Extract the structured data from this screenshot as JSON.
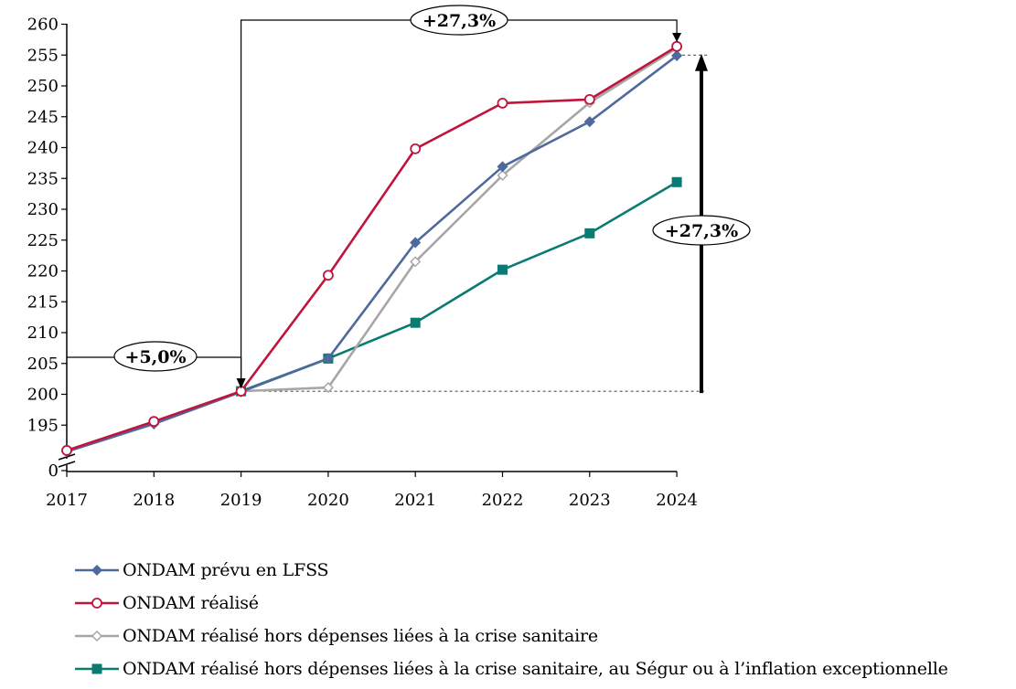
{
  "chart_data": {
    "type": "line",
    "x": [
      "2017",
      "2018",
      "2019",
      "2020",
      "2021",
      "2022",
      "2023",
      "2024"
    ],
    "yticks": [
      "0",
      "195",
      "200",
      "205",
      "210",
      "215",
      "220",
      "225",
      "230",
      "235",
      "240",
      "245",
      "250",
      "255",
      "260"
    ],
    "ylim": [
      192.5,
      260
    ],
    "y_axis_break": true,
    "grid": false,
    "legend_position": "bottom",
    "series": [
      {
        "name": "ONDAM prévu en LFSS",
        "color": "#4e6a9c",
        "marker": "diamond-filled",
        "values": [
          190.7,
          195.2,
          200.4,
          205.8,
          224.6,
          236.9,
          244.2,
          254.9
        ]
      },
      {
        "name": "ONDAM réalisé",
        "color": "#c0143c",
        "marker": "circle-open",
        "values": [
          190.9,
          195.6,
          200.5,
          219.3,
          239.8,
          247.2,
          247.8,
          256.4
        ]
      },
      {
        "name": "ONDAM réalisé hors dépenses liées à la crise sanitaire",
        "color": "#a6a6a6",
        "marker": "diamond-open",
        "values": [
          190.9,
          195.4,
          200.5,
          201.1,
          221.5,
          235.5,
          247.3,
          256.1
        ]
      },
      {
        "name": "ONDAM réalisé hors dépenses liées à la crise sanitaire, au Ségur ou à l’inflation exceptionnelle",
        "color": "#0a7b72",
        "marker": "square-filled",
        "values": [
          null,
          null,
          200.5,
          205.8,
          211.6,
          220.2,
          226.1,
          234.4
        ]
      }
    ],
    "annotations": [
      {
        "text": "+5,0%"
      },
      {
        "text": "+27,3%"
      },
      {
        "text": "+27,3%"
      }
    ]
  }
}
